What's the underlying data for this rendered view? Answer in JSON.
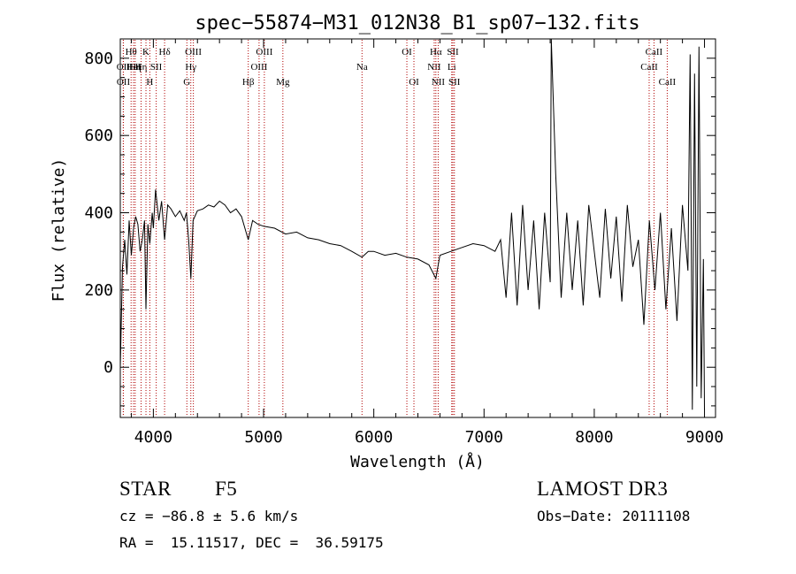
{
  "chart_data": {
    "type": "line",
    "title": "spec−55874−M31_012N38_B1_sp07−132.fits",
    "xlabel": "Wavelength (Å)",
    "ylabel": "Flux (relative)",
    "xlim": [
      3700,
      9100
    ],
    "ylim": [
      -130,
      850
    ],
    "xticks": [
      4000,
      5000,
      6000,
      7000,
      8000,
      9000
    ],
    "yticks": [
      0,
      200,
      400,
      600,
      800
    ],
    "series": [
      {
        "name": "flux",
        "x": [
          3700,
          3720,
          3740,
          3760,
          3780,
          3800,
          3820,
          3840,
          3860,
          3880,
          3900,
          3920,
          3933,
          3950,
          3968,
          3990,
          4000,
          4020,
          4050,
          4075,
          4102,
          4130,
          4160,
          4200,
          4240,
          4280,
          4300,
          4320,
          4340,
          4360,
          4400,
          4450,
          4500,
          4550,
          4600,
          4650,
          4700,
          4750,
          4800,
          4861,
          4900,
          4950,
          5000,
          5100,
          5200,
          5300,
          5400,
          5500,
          5600,
          5700,
          5800,
          5893,
          5950,
          6000,
          6100,
          6200,
          6300,
          6400,
          6500,
          6563,
          6600,
          6700,
          6800,
          6900,
          7000,
          7100,
          7150,
          7200,
          7250,
          7300,
          7350,
          7400,
          7450,
          7500,
          7550,
          7600,
          7610,
          7650,
          7700,
          7750,
          7800,
          7850,
          7900,
          7950,
          8000,
          8050,
          8100,
          8150,
          8200,
          8250,
          8300,
          8350,
          8400,
          8450,
          8500,
          8550,
          8600,
          8650,
          8700,
          8750,
          8800,
          8850,
          8870,
          8890,
          8910,
          8930,
          8950,
          8970,
          8990,
          9000
        ],
        "y": [
          0,
          260,
          330,
          240,
          380,
          290,
          360,
          390,
          370,
          300,
          330,
          380,
          150,
          370,
          320,
          400,
          360,
          460,
          380,
          430,
          330,
          420,
          410,
          390,
          405,
          380,
          400,
          330,
          230,
          380,
          405,
          410,
          420,
          415,
          430,
          420,
          400,
          410,
          390,
          330,
          380,
          370,
          365,
          360,
          345,
          350,
          335,
          330,
          320,
          315,
          300,
          285,
          300,
          300,
          290,
          295,
          285,
          280,
          265,
          230,
          290,
          300,
          310,
          320,
          315,
          300,
          330,
          180,
          400,
          160,
          420,
          200,
          380,
          150,
          400,
          220,
          850,
          500,
          180,
          400,
          200,
          380,
          160,
          420,
          300,
          180,
          410,
          230,
          390,
          170,
          420,
          260,
          330,
          110,
          380,
          200,
          400,
          150,
          360,
          120,
          420,
          250,
          810,
          -110,
          760,
          -50,
          830,
          -80,
          280,
          -110
        ]
      }
    ],
    "lines": [
      {
        "wave": 3798,
        "row": 1,
        "label": "Hθ"
      },
      {
        "wave": 3727,
        "row": 2,
        "label": "OII"
      },
      {
        "wave": 3728,
        "row": 3,
        "label": "OII"
      },
      {
        "wave": 3835,
        "row": 2,
        "label": "Hη"
      },
      {
        "wave": 3820,
        "row": 2,
        "label": "HeI"
      },
      {
        "wave": 3889,
        "row": 2,
        "label": "Hη"
      },
      {
        "wave": 3933,
        "row": 1,
        "label": "K"
      },
      {
        "wave": 3968,
        "row": 3,
        "label": "H"
      },
      {
        "wave": 4026,
        "row": 2,
        "label": "SII"
      },
      {
        "wave": 4102,
        "row": 1,
        "label": "Hδ"
      },
      {
        "wave": 4304,
        "row": 3,
        "label": "G"
      },
      {
        "wave": 4340,
        "row": 2,
        "label": "Hγ"
      },
      {
        "wave": 4363,
        "row": 1,
        "label": "OIII"
      },
      {
        "wave": 4861,
        "row": 3,
        "label": "Hβ"
      },
      {
        "wave": 4959,
        "row": 2,
        "label": "OIII"
      },
      {
        "wave": 5007,
        "row": 1,
        "label": "OIII"
      },
      {
        "wave": 5175,
        "row": 3,
        "label": "Mg"
      },
      {
        "wave": 5893,
        "row": 2,
        "label": "Na"
      },
      {
        "wave": 6300,
        "row": 1,
        "label": "OI"
      },
      {
        "wave": 6364,
        "row": 3,
        "label": "OI"
      },
      {
        "wave": 6548,
        "row": 2,
        "label": "NII"
      },
      {
        "wave": 6563,
        "row": 1,
        "label": "Hα"
      },
      {
        "wave": 6584,
        "row": 3,
        "label": "NII"
      },
      {
        "wave": 6707,
        "row": 2,
        "label": "Li"
      },
      {
        "wave": 6717,
        "row": 1,
        "label": "SII"
      },
      {
        "wave": 6731,
        "row": 3,
        "label": "SII"
      },
      {
        "wave": 8498,
        "row": 2,
        "label": "CaII"
      },
      {
        "wave": 8542,
        "row": 1,
        "label": "CaII"
      },
      {
        "wave": 8662,
        "row": 3,
        "label": "CaII"
      }
    ]
  },
  "info": {
    "object_class": "STAR",
    "subclass": "F5",
    "survey": "LAMOST DR3",
    "redshift": "cz = −86.8 ± 5.6 km/s",
    "obs_date": "Obs−Date: 20111108",
    "coords": "RA =  15.11517, DEC =  36.59175"
  },
  "colors": {
    "line_marker": "#b00000",
    "axis": "#000000",
    "spectrum": "#000000"
  }
}
